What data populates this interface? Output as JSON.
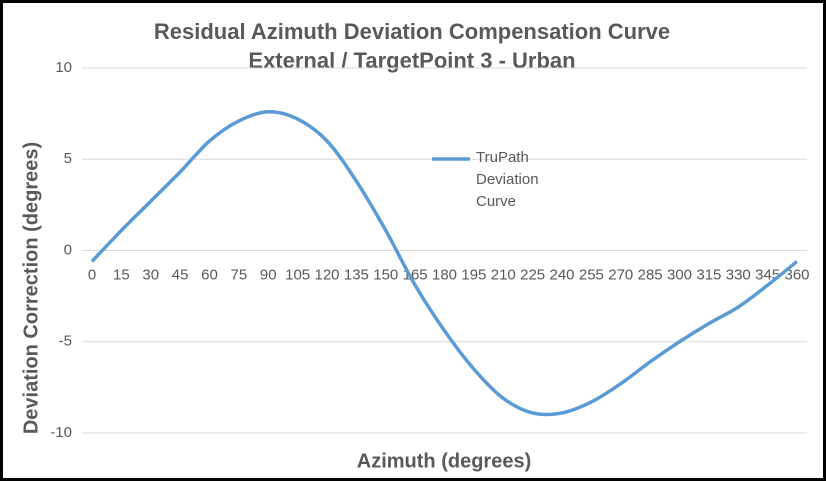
{
  "chart_data": {
    "type": "line",
    "title": "Residual Azimuth  Deviation Compensation  Curve",
    "subtitle": "External / TargetPoint 3 - Urban",
    "x_label": "Azimuth (degrees)",
    "y_label": "Deviation Correction (degrees)",
    "x": [
      0,
      15,
      30,
      45,
      60,
      75,
      90,
      105,
      120,
      135,
      150,
      165,
      180,
      195,
      210,
      225,
      240,
      255,
      270,
      285,
      300,
      315,
      330,
      345,
      360
    ],
    "xlim": [
      0,
      360
    ],
    "xticks": [
      0,
      15,
      30,
      45,
      60,
      75,
      90,
      105,
      120,
      135,
      150,
      165,
      180,
      195,
      210,
      225,
      240,
      255,
      270,
      285,
      300,
      315,
      330,
      345,
      360
    ],
    "ylim": [
      -10,
      10
    ],
    "yticks": [
      -10,
      -5,
      0,
      5,
      10
    ],
    "grid": true,
    "legend": "right",
    "series": [
      {
        "name": "TruPath Deviation Curve",
        "color": "#5b9bd5",
        "values": [
          -0.6,
          1.1,
          2.7,
          4.3,
          6.0,
          7.1,
          7.6,
          7.2,
          6.0,
          3.8,
          1.1,
          -1.9,
          -4.4,
          -6.5,
          -8.1,
          -8.9,
          -8.9,
          -8.3,
          -7.3,
          -6.1,
          -5.0,
          -4.0,
          -3.1,
          -1.9,
          -0.6
        ]
      }
    ]
  }
}
